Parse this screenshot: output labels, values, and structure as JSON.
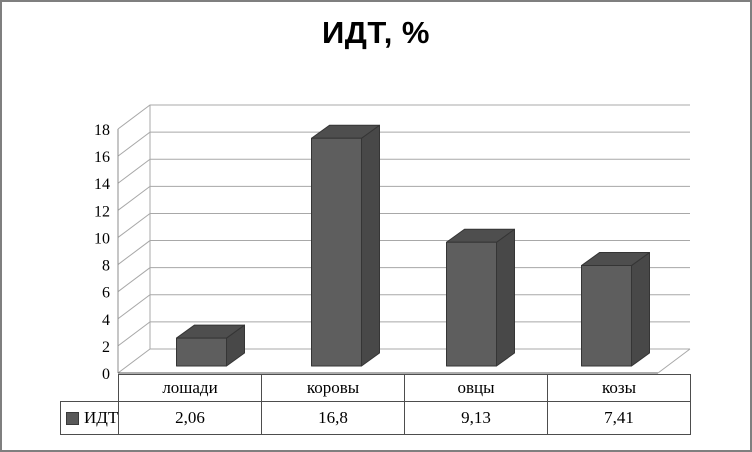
{
  "frame": {
    "border_color": "#7f7f7f",
    "background": "#ffffff"
  },
  "chart_data": {
    "type": "bar",
    "subtype": "3d-column",
    "title": "ИДТ, %",
    "categories": [
      "лошади",
      "коровы",
      "овцы",
      "козы"
    ],
    "series": [
      {
        "name": "ИДТ",
        "values": [
          2.06,
          16.8,
          9.13,
          7.41
        ]
      }
    ],
    "value_labels": [
      "2,06",
      "16,8",
      "9,13",
      "7,41"
    ],
    "legend_label": "ИДТ",
    "ylim": [
      0,
      18
    ],
    "ytick_step": 2,
    "ytick_labels": [
      "0",
      "2",
      "4",
      "6",
      "8",
      "10",
      "12",
      "14",
      "16",
      "18"
    ],
    "grid": true,
    "legend_position": "table-left",
    "colors": {
      "bar_front": "#5e5e5e",
      "bar_top": "#4e4e4e",
      "bar_side": "#484848",
      "bar_outline": "#353535",
      "gridline": "#a8a8a8",
      "axis": "#595959",
      "wall_edge": "#8c8c8c",
      "table_border": "#4d4d4d",
      "text": "#000000"
    }
  }
}
